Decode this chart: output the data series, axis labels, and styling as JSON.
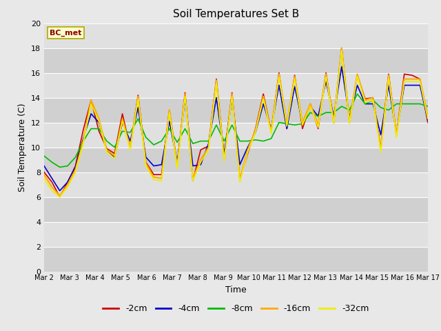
{
  "title": "Soil Temperatures Set B",
  "xlabel": "Time",
  "ylabel": "Soil Temperature (C)",
  "annotation": "BC_met",
  "ylim": [
    0,
    20
  ],
  "yticks": [
    0,
    2,
    4,
    6,
    8,
    10,
    12,
    14,
    16,
    18,
    20
  ],
  "x_labels": [
    "Mar 2",
    "Mar 3",
    "Mar 4",
    "Mar 5",
    "Mar 6",
    "Mar 7",
    "Mar 8",
    "Mar 9",
    "Mar 10",
    "Mar 11",
    "Mar 12",
    "Mar 13",
    "Mar 14",
    "Mar 15",
    "Mar 16",
    "Mar 17"
  ],
  "series": {
    "-2cm": {
      "color": "#cc0000",
      "linewidth": 1.2,
      "y": [
        8.0,
        7.2,
        6.0,
        7.2,
        8.5,
        11.4,
        13.8,
        11.3,
        9.9,
        9.5,
        12.7,
        9.9,
        14.2,
        8.8,
        7.8,
        7.8,
        13.0,
        8.6,
        14.4,
        7.3,
        9.8,
        10.1,
        15.5,
        9.2,
        14.4,
        7.4,
        9.5,
        11.5,
        14.3,
        11.3,
        16.0,
        11.5,
        15.8,
        11.5,
        13.5,
        11.5,
        16.0,
        12.0,
        18.0,
        12.0,
        15.8,
        13.9,
        14.0,
        9.9,
        15.9,
        11.0,
        15.9,
        15.8,
        15.5,
        12.0
      ]
    },
    "-4cm": {
      "color": "#0000cc",
      "linewidth": 1.2,
      "y": [
        8.5,
        7.5,
        6.5,
        7.2,
        8.4,
        10.7,
        12.7,
        12.0,
        9.8,
        9.2,
        12.0,
        10.5,
        13.2,
        9.2,
        8.5,
        8.6,
        12.1,
        8.8,
        13.9,
        8.5,
        8.6,
        10.3,
        14.0,
        9.5,
        13.9,
        8.6,
        10.0,
        11.2,
        13.5,
        11.5,
        15.0,
        11.5,
        14.9,
        12.0,
        13.3,
        12.5,
        15.3,
        12.5,
        16.5,
        12.4,
        15.0,
        13.5,
        13.5,
        11.0,
        15.0,
        11.1,
        15.0,
        15.0,
        15.0,
        12.2
      ]
    },
    "-8cm": {
      "color": "#00bb00",
      "linewidth": 1.2,
      "y": [
        9.3,
        8.8,
        8.4,
        8.5,
        9.2,
        10.5,
        11.5,
        11.5,
        10.5,
        10.0,
        11.3,
        11.2,
        12.3,
        10.8,
        10.2,
        10.5,
        11.5,
        10.4,
        11.5,
        10.3,
        10.5,
        10.5,
        11.8,
        10.5,
        11.8,
        10.5,
        10.5,
        10.6,
        10.5,
        10.7,
        12.0,
        11.9,
        11.8,
        11.9,
        12.8,
        12.5,
        12.8,
        12.8,
        13.3,
        13.0,
        14.3,
        13.5,
        13.8,
        13.2,
        13.0,
        13.5,
        13.5,
        13.5,
        13.5,
        13.3
      ]
    },
    "-16cm": {
      "color": "#ffaa00",
      "linewidth": 1.5,
      "y": [
        7.8,
        6.8,
        6.1,
        7.0,
        8.2,
        10.5,
        13.8,
        12.3,
        9.8,
        9.3,
        12.3,
        10.0,
        14.1,
        8.7,
        7.6,
        7.5,
        13.0,
        8.5,
        14.3,
        7.5,
        9.0,
        10.0,
        15.4,
        9.0,
        14.3,
        7.4,
        9.8,
        11.4,
        14.1,
        11.3,
        15.9,
        11.9,
        15.7,
        12.0,
        13.5,
        11.8,
        15.9,
        12.1,
        18.0,
        12.1,
        15.9,
        13.8,
        14.0,
        9.8,
        15.8,
        11.0,
        15.5,
        15.5,
        15.5,
        12.5
      ]
    },
    "-32cm": {
      "color": "#eeee00",
      "linewidth": 1.2,
      "y": [
        7.5,
        6.5,
        6.0,
        6.8,
        8.0,
        10.3,
        13.5,
        12.1,
        9.6,
        9.1,
        12.1,
        9.8,
        13.9,
        8.5,
        7.4,
        7.3,
        12.8,
        8.3,
        14.1,
        7.3,
        8.8,
        9.8,
        15.2,
        8.9,
        14.1,
        7.2,
        9.6,
        11.2,
        13.9,
        11.1,
        15.7,
        11.7,
        15.5,
        11.8,
        13.3,
        11.6,
        15.7,
        11.9,
        17.8,
        11.9,
        15.7,
        13.6,
        13.8,
        9.6,
        15.6,
        10.8,
        15.3,
        15.3,
        15.3,
        12.3
      ]
    }
  },
  "legend_order": [
    "-2cm",
    "-4cm",
    "-8cm",
    "-16cm",
    "-32cm"
  ],
  "fig_bg_color": "#e8e8e8",
  "plot_bg_color": "#dcdcdc",
  "grid_color": "#ffffff",
  "grid2_color": "#c8c8c8",
  "annotation_bg": "#ffffcc",
  "annotation_fg": "#880000",
  "annotation_edge": "#aaaa00"
}
